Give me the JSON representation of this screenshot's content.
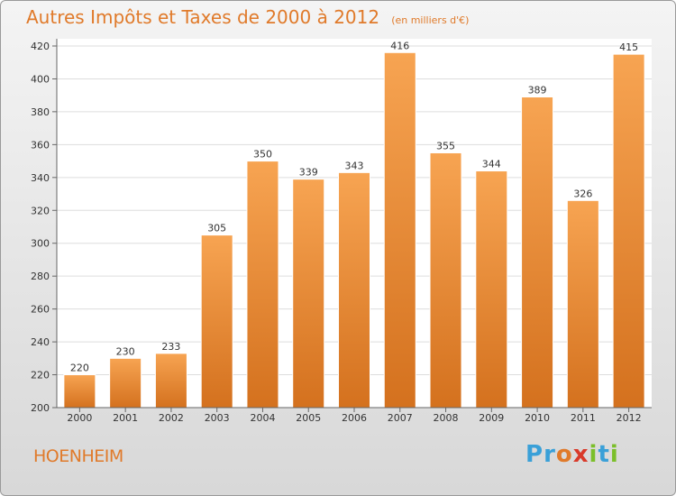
{
  "header": {
    "title": "Autres Impôts et Taxes de 2000 à 2012",
    "unit": "(en milliers d'€)"
  },
  "footer": {
    "commune": "HOENHEIM",
    "logo_letters": [
      {
        "ch": "P",
        "color": "#3aa0d8"
      },
      {
        "ch": "r",
        "color": "#3aa0d8"
      },
      {
        "ch": "o",
        "color": "#e07a2a"
      },
      {
        "ch": "x",
        "color": "#d93a2a"
      },
      {
        "ch": "i",
        "color": "#7bbf2a"
      },
      {
        "ch": "t",
        "color": "#3aa0d8"
      },
      {
        "ch": "i",
        "color": "#7bbf2a"
      }
    ]
  },
  "colors": {
    "bar_top": "#f7a452",
    "bar_bottom": "#d4711e",
    "title": "#e07a2a"
  },
  "chart_data": {
    "type": "bar",
    "title": "Autres Impôts et Taxes de 2000 à 2012",
    "subtitle": "(en milliers d'€)",
    "categories": [
      "2000",
      "2001",
      "2002",
      "2003",
      "2004",
      "2005",
      "2006",
      "2007",
      "2008",
      "2009",
      "2010",
      "2011",
      "2012"
    ],
    "values": [
      220,
      230,
      233,
      305,
      350,
      339,
      343,
      416,
      355,
      344,
      389,
      326,
      415
    ],
    "ylim": [
      200,
      420
    ],
    "yticks": [
      200,
      220,
      240,
      260,
      280,
      300,
      320,
      340,
      360,
      380,
      400,
      420
    ],
    "grid": true
  }
}
